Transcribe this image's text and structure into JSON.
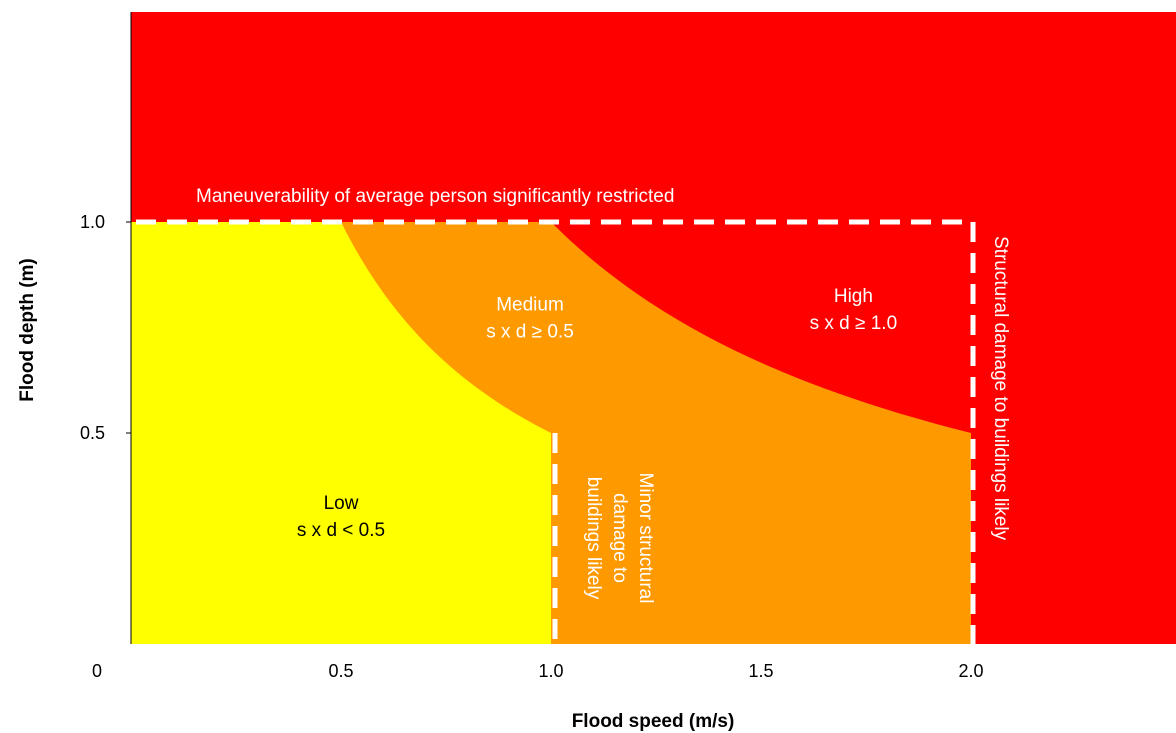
{
  "chart_data": {
    "type": "area",
    "title": "",
    "xlabel": "Flood speed (m/s)",
    "ylabel": "Flood depth (m)",
    "xlim": [
      0,
      2.45
    ],
    "ylim": [
      0,
      1.5
    ],
    "origin_label": "0",
    "x_ticks": [
      {
        "value": 0.5,
        "label": "0.5"
      },
      {
        "value": 1.0,
        "label": "1.0"
      },
      {
        "value": 1.5,
        "label": "1.5"
      },
      {
        "value": 2.0,
        "label": "2.0"
      }
    ],
    "y_ticks": [
      {
        "value": 0.5,
        "label": "0.5"
      },
      {
        "value": 1.0,
        "label": "1.0"
      }
    ],
    "grid": false,
    "legend": "none",
    "zones": [
      {
        "id": "low",
        "name": "Low",
        "formula": "s x d < 0.5",
        "color": "#ffff00",
        "text_color": "#000000",
        "label_at": [
          0.5,
          0.32
        ]
      },
      {
        "id": "medium",
        "name": "Medium",
        "formula": "s x d ≥ 0.5",
        "color": "#ff9900",
        "text_color": "#ffffff",
        "label_at": [
          0.95,
          0.79
        ]
      },
      {
        "id": "high",
        "name": "High",
        "formula": "s x d ≥ 1.0",
        "color": "#ff0000",
        "text_color": "#ffffff",
        "label_at": [
          1.72,
          0.81
        ]
      }
    ],
    "background_color": "#ff0000",
    "annotations": {
      "maneuverability": {
        "text": "Maneuverability of average person significantly restricted",
        "depth": 1.0
      },
      "minor_damage": {
        "lines": [
          "Minor structural",
          "damage to",
          "buildings likely"
        ],
        "speed": 1.0,
        "max_depth": 0.5
      },
      "structural_damage": {
        "text": "Structural damage to buildings likely",
        "speed": 2.0,
        "max_depth": 1.0
      }
    }
  }
}
